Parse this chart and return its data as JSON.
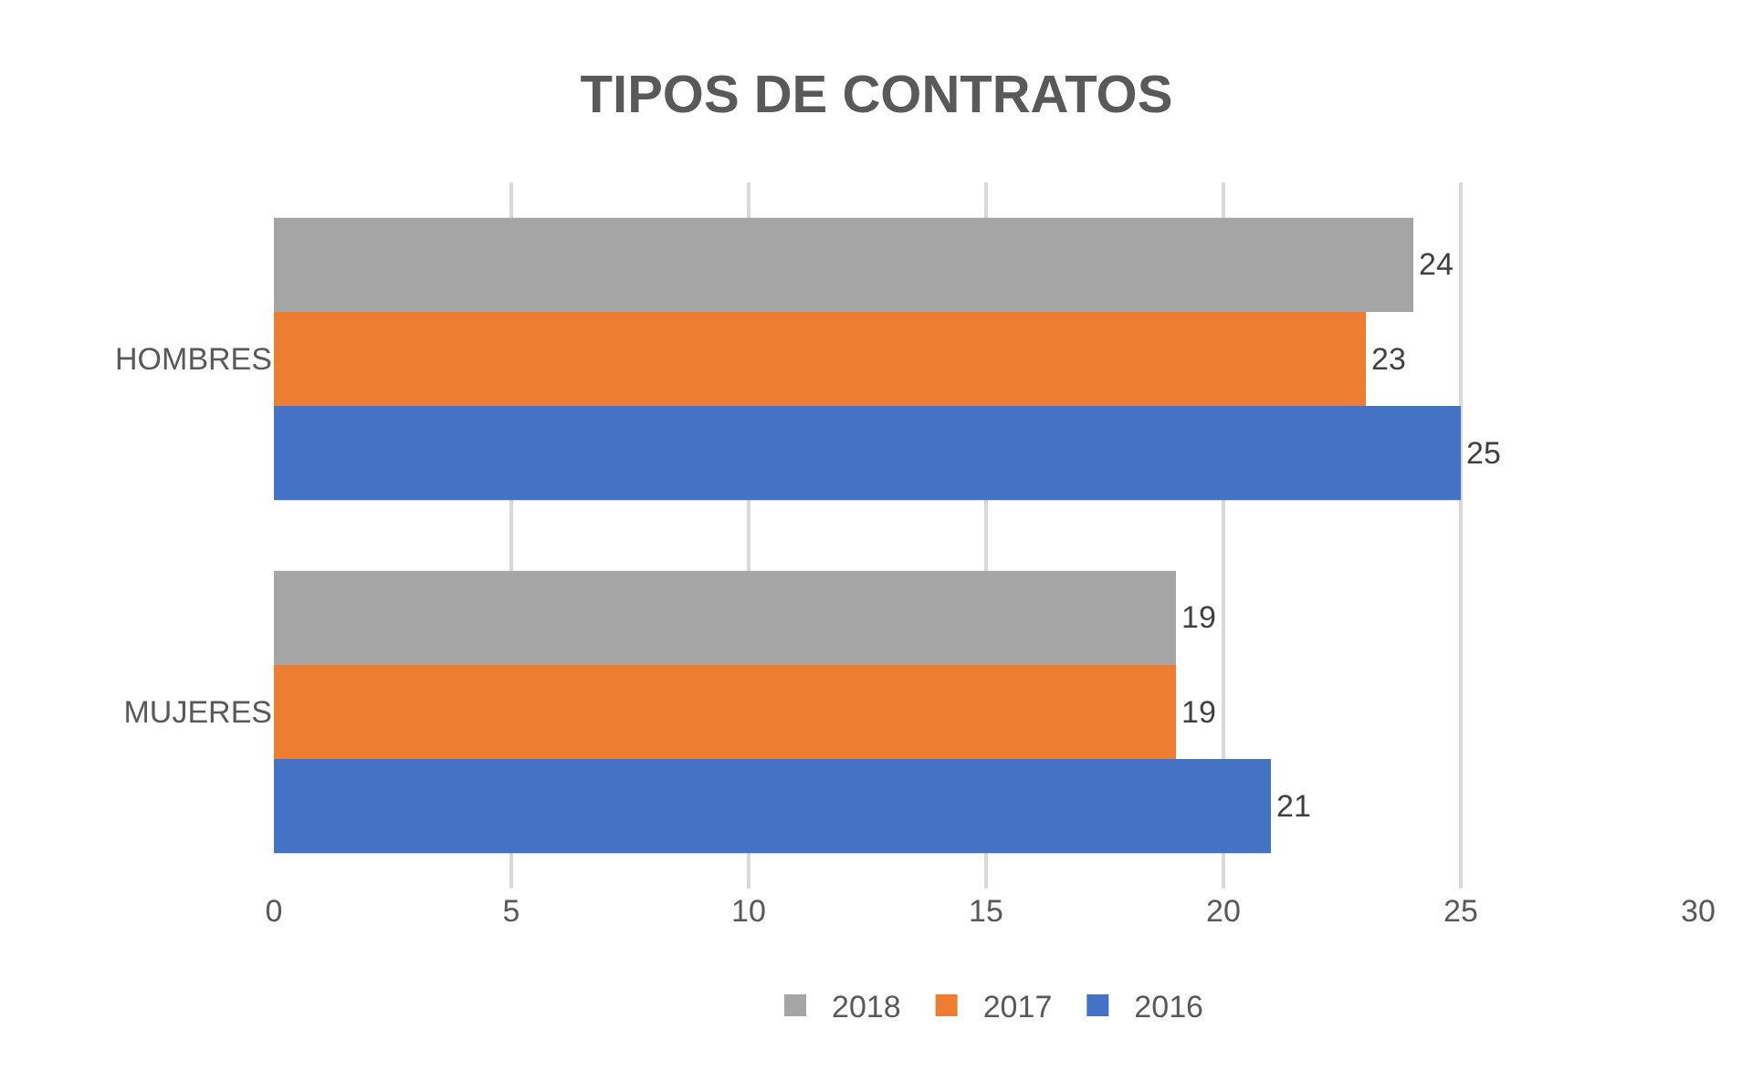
{
  "chart_data": {
    "type": "bar",
    "orientation": "horizontal",
    "title": "TIPOS DE CONTRATOS",
    "categories": [
      "HOMBRES",
      "MUJERES"
    ],
    "series": [
      {
        "name": "2018",
        "color": "#a5a5a5",
        "values": [
          24,
          19
        ]
      },
      {
        "name": "2017",
        "color": "#ed7d31",
        "values": [
          23,
          19
        ]
      },
      {
        "name": "2016",
        "color": "#4472c4",
        "values": [
          25,
          21
        ]
      }
    ],
    "xlim": [
      0,
      30
    ],
    "xticks": [
      0,
      5,
      10,
      15,
      20,
      25,
      30
    ],
    "grid": "x",
    "legend": "bottom",
    "data_labels": true
  }
}
